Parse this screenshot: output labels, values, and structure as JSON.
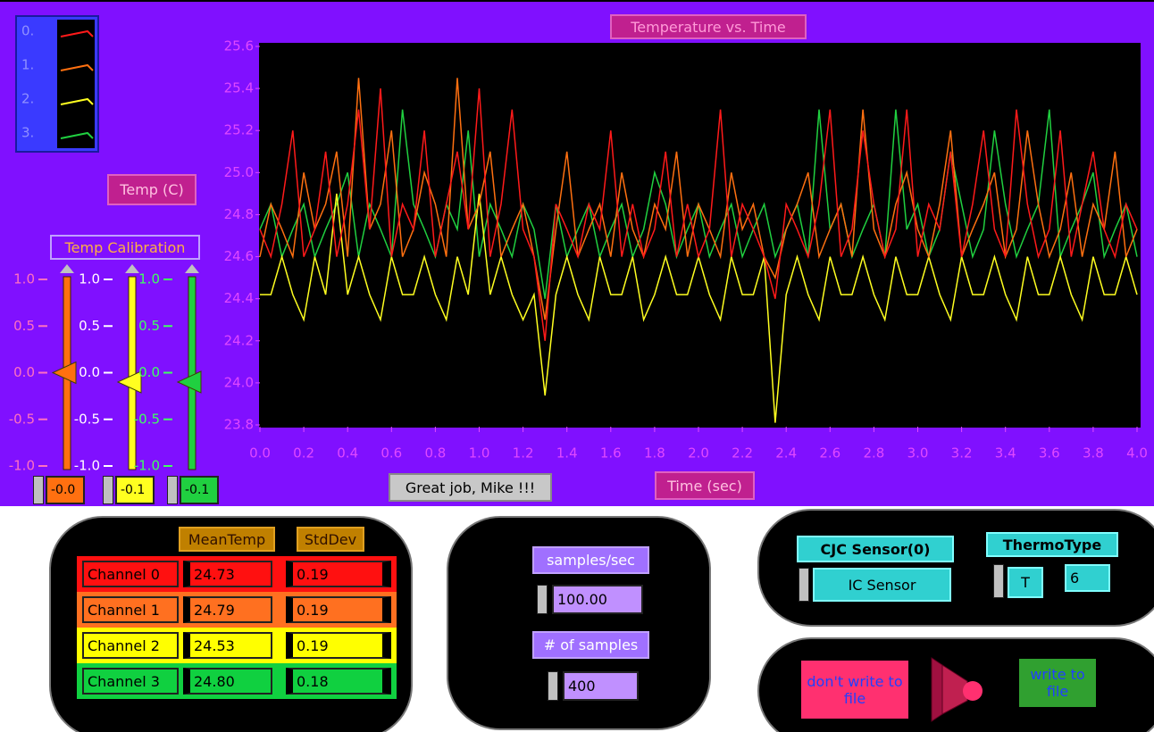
{
  "chart_data": {
    "type": "line",
    "title": "Temperature vs. Time",
    "xlabel": "Time (sec)",
    "ylabel": "Temp (C)",
    "x": [
      0,
      0.05,
      0.1,
      0.15,
      0.2,
      0.25,
      0.3,
      0.35,
      0.4,
      0.45,
      0.5,
      0.55,
      0.6,
      0.65,
      0.7,
      0.75,
      0.8,
      0.85,
      0.9,
      0.95,
      1,
      1.05,
      1.1,
      1.15,
      1.2,
      1.25,
      1.3,
      1.35,
      1.4,
      1.45,
      1.5,
      1.55,
      1.6,
      1.65,
      1.7,
      1.75,
      1.8,
      1.85,
      1.9,
      1.95,
      2,
      2.05,
      2.1,
      2.15,
      2.2,
      2.25,
      2.3,
      2.35,
      2.4,
      2.45,
      2.5,
      2.55,
      2.6,
      2.65,
      2.7,
      2.75,
      2.8,
      2.85,
      2.9,
      2.95,
      3,
      3.05,
      3.1,
      3.15,
      3.2,
      3.25,
      3.3,
      3.35,
      3.4,
      3.45,
      3.5,
      3.55,
      3.6,
      3.65,
      3.7,
      3.75,
      3.8,
      3.85,
      3.9,
      3.95,
      4
    ],
    "series": [
      {
        "name": "0.",
        "color": "#ff1a1a",
        "values": [
          24.73,
          24.6,
          24.85,
          25.2,
          24.6,
          24.73,
          25.1,
          24.6,
          24.85,
          25.3,
          24.73,
          25.4,
          24.6,
          24.85,
          24.73,
          25.2,
          24.6,
          24.85,
          25.1,
          24.73,
          25.4,
          24.6,
          24.85,
          25.3,
          24.73,
          24.6,
          24.2,
          24.85,
          24.73,
          24.6,
          24.85,
          24.73,
          25.2,
          24.6,
          24.85,
          24.6,
          24.73,
          25.1,
          24.6,
          24.85,
          24.6,
          24.73,
          25.3,
          24.6,
          24.85,
          24.73,
          24.6,
          24.4,
          24.85,
          24.73,
          24.6,
          24.85,
          25.3,
          24.6,
          24.73,
          25.2,
          24.85,
          24.6,
          24.73,
          25.3,
          24.6,
          24.85,
          24.73,
          25.1,
          24.6,
          24.85,
          25.2,
          24.73,
          24.6,
          25.3,
          24.85,
          24.6,
          24.73,
          25.2,
          24.6,
          24.85,
          25.1,
          24.73,
          24.6,
          24.85,
          24.73
        ]
      },
      {
        "name": "1.",
        "color": "#ff7010",
        "values": [
          24.6,
          24.85,
          24.73,
          24.6,
          25.0,
          24.73,
          24.85,
          25.1,
          24.6,
          25.45,
          24.73,
          24.85,
          25.2,
          24.6,
          24.73,
          25.0,
          24.85,
          24.6,
          25.45,
          24.73,
          24.85,
          25.1,
          24.6,
          24.73,
          24.85,
          24.6,
          24.3,
          24.73,
          25.1,
          24.6,
          24.73,
          24.85,
          24.6,
          25.0,
          24.73,
          24.6,
          24.85,
          24.73,
          25.1,
          24.6,
          24.85,
          24.73,
          24.6,
          25.0,
          24.73,
          24.85,
          24.6,
          24.5,
          24.73,
          24.85,
          25.0,
          24.6,
          24.73,
          24.85,
          24.6,
          25.3,
          24.73,
          24.6,
          24.85,
          25.0,
          24.73,
          24.6,
          24.85,
          25.2,
          24.6,
          24.73,
          24.85,
          25.0,
          24.6,
          24.73,
          25.2,
          24.85,
          24.6,
          24.73,
          25.0,
          24.6,
          24.85,
          24.73,
          25.1,
          24.6,
          24.73
        ]
      },
      {
        "name": "2.",
        "color": "#ffff20",
        "values": [
          24.42,
          24.42,
          24.6,
          24.42,
          24.3,
          24.6,
          24.42,
          24.9,
          24.42,
          24.6,
          24.42,
          24.3,
          24.6,
          24.42,
          24.42,
          24.6,
          24.42,
          24.3,
          24.6,
          24.42,
          24.9,
          24.42,
          24.6,
          24.42,
          24.3,
          24.42,
          23.94,
          24.42,
          24.6,
          24.42,
          24.3,
          24.6,
          24.42,
          24.42,
          24.6,
          24.3,
          24.42,
          24.6,
          24.42,
          24.42,
          24.6,
          24.42,
          24.3,
          24.6,
          24.42,
          24.42,
          24.6,
          23.81,
          24.42,
          24.6,
          24.42,
          24.3,
          24.6,
          24.42,
          24.42,
          24.6,
          24.42,
          24.3,
          24.6,
          24.42,
          24.42,
          24.6,
          24.42,
          24.3,
          24.6,
          24.42,
          24.42,
          24.6,
          24.42,
          24.3,
          24.6,
          24.42,
          24.42,
          24.6,
          24.42,
          24.3,
          24.6,
          24.42,
          24.42,
          24.6,
          24.42
        ]
      },
      {
        "name": "3.",
        "color": "#20d040",
        "values": [
          24.73,
          24.85,
          24.6,
          24.73,
          24.85,
          24.6,
          24.73,
          24.85,
          25.0,
          24.6,
          24.85,
          24.73,
          24.6,
          25.3,
          24.85,
          24.73,
          24.6,
          24.85,
          24.73,
          25.2,
          24.6,
          24.85,
          24.73,
          24.6,
          24.85,
          24.73,
          24.4,
          24.85,
          24.6,
          24.73,
          24.85,
          24.6,
          24.73,
          24.85,
          24.6,
          24.73,
          25.0,
          24.85,
          24.6,
          24.73,
          24.85,
          24.6,
          24.73,
          24.85,
          24.6,
          24.73,
          24.85,
          24.6,
          24.73,
          24.85,
          24.6,
          25.3,
          24.73,
          24.85,
          24.6,
          24.73,
          24.85,
          24.6,
          25.3,
          24.73,
          24.85,
          24.6,
          24.73,
          25.1,
          24.85,
          24.6,
          24.73,
          25.2,
          24.85,
          24.6,
          24.73,
          24.85,
          25.3,
          24.6,
          24.73,
          24.85,
          25.0,
          24.6,
          24.73,
          24.85,
          24.6
        ]
      }
    ],
    "xlim": [
      0,
      4
    ],
    "ylim": [
      23.8,
      25.6
    ],
    "xticks": [
      {
        "value": 0,
        "label": "0.0"
      },
      0.2,
      0.4,
      0.6,
      0.8,
      {
        "value": 1,
        "label": "1.0"
      },
      1.2,
      1.4,
      1.6,
      1.8,
      {
        "value": 2,
        "label": "2.0"
      },
      2.2,
      2.4,
      2.6,
      2.8,
      {
        "value": 3,
        "label": "3.0"
      },
      3.2,
      3.4,
      3.6,
      3.8,
      {
        "value": 4,
        "label": "4.0"
      }
    ],
    "yticks": [
      23.8,
      {
        "value": 24,
        "label": "24.0"
      },
      24.2,
      24.4,
      24.6,
      24.8,
      {
        "value": 25,
        "label": "25.0"
      },
      25.2,
      25.4,
      25.6
    ]
  },
  "calibration": {
    "title": "Temp Calibration",
    "lim": [
      -1,
      1
    ],
    "ticks": [
      {
        "value": 1,
        "label": "1.0"
      },
      0.5,
      {
        "value": 0,
        "label": "0.0"
      },
      -0.5,
      {
        "value": -1,
        "label": "-1.0"
      }
    ],
    "colors": [
      "#ff7010",
      "#ffff20",
      "#20d040"
    ],
    "values": [
      {
        "value": 0,
        "label": "-0.0"
      },
      -0.1,
      -0.1
    ]
  },
  "message": "Great job, Mike !!!",
  "table": {
    "headers": [
      "MeanTemp",
      "StdDev"
    ],
    "rows": [
      [
        "Channel 0",
        "24.73",
        "0.19"
      ],
      [
        "Channel 1",
        "24.79",
        "0.19"
      ],
      [
        "Channel 2",
        "24.53",
        "0.19"
      ],
      [
        "Channel 3",
        "24.80",
        "0.18"
      ]
    ]
  },
  "acquisition": {
    "rate_label": "samples/sec",
    "rate": "100.00",
    "count_label": "# of samples",
    "count": "400"
  },
  "thermocouple": {
    "cjc_label": "CJC Sensor(0)",
    "cjc": "IC Sensor",
    "type_label": "ThermoType",
    "type": "T",
    "type_code": "6"
  },
  "file_switch": {
    "off": "don't write to file",
    "on": "write to file"
  }
}
